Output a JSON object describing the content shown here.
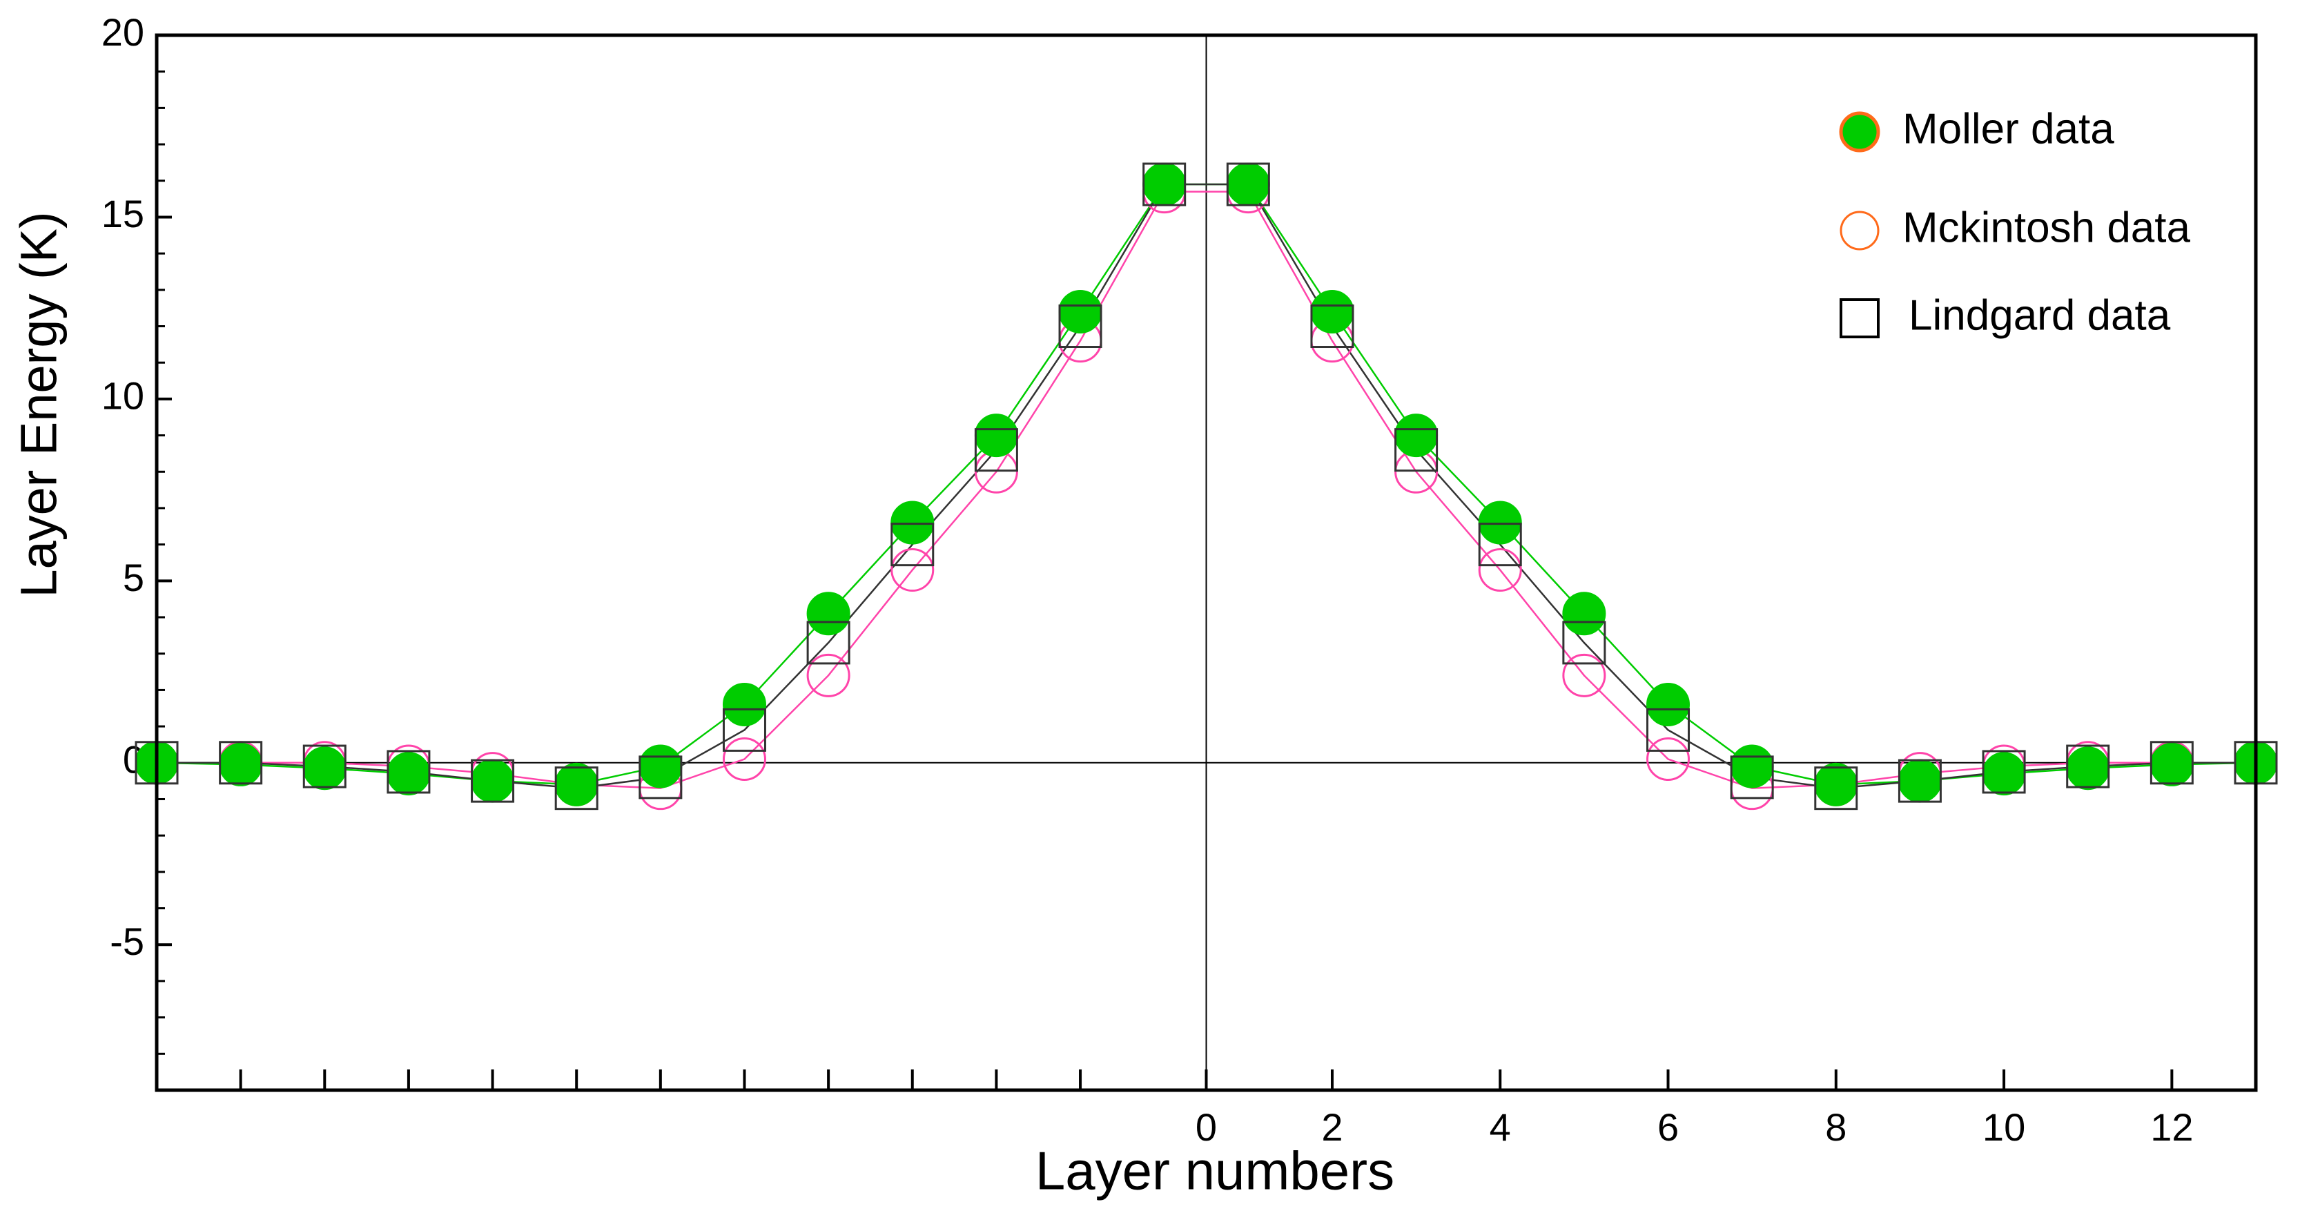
{
  "chart_data": {
    "type": "line",
    "xlabel": "Layer numbers",
    "ylabel": "Layer Energy (K)",
    "x": [
      -12.5,
      -11.5,
      -10.5,
      -9.5,
      -8.5,
      -7.5,
      -6.5,
      -5.5,
      -4.5,
      -3.5,
      -2.5,
      -1.5,
      -0.5,
      0.5,
      1.5,
      2.5,
      3.5,
      4.5,
      5.5,
      6.5,
      7.5,
      8.5,
      9.5,
      10.5,
      11.5,
      12.5
    ],
    "series": [
      {
        "name": "Mckintosh data",
        "color": "#ff44aa",
        "legend_color": "#ff6a1a",
        "marker": "circle",
        "values": [
          0,
          0,
          0,
          -0.1,
          -0.3,
          -0.6,
          -0.7,
          0.1,
          2.4,
          5.3,
          8.0,
          11.6,
          15.7,
          15.7,
          11.6,
          8.0,
          5.3,
          2.4,
          0.1,
          -0.7,
          -0.6,
          -0.3,
          -0.1,
          0,
          0,
          0
        ]
      },
      {
        "name": "Moller data",
        "color": "#00cc00",
        "legend_color": "#ff6a1a",
        "marker": "circle-filled",
        "values": [
          0,
          -0.05,
          -0.15,
          -0.3,
          -0.5,
          -0.6,
          -0.1,
          1.6,
          4.1,
          6.6,
          9.0,
          12.4,
          15.9,
          15.9,
          12.4,
          9.0,
          6.6,
          4.1,
          1.6,
          -0.1,
          -0.6,
          -0.5,
          -0.3,
          -0.15,
          -0.05,
          0
        ]
      },
      {
        "name": "Lindgard data",
        "color": "#333333",
        "legend_color": "#000000",
        "marker": "square",
        "values": [
          0,
          0,
          -0.1,
          -0.25,
          -0.5,
          -0.7,
          -0.4,
          0.9,
          3.3,
          6.0,
          8.6,
          12.0,
          15.9,
          15.9,
          12.0,
          8.6,
          6.0,
          3.3,
          0.9,
          -0.4,
          -0.7,
          -0.5,
          -0.25,
          -0.1,
          0,
          0
        ]
      }
    ],
    "legend_order": [
      1,
      0,
      2
    ],
    "xlim": [
      -12.5,
      12.5
    ],
    "ylim": [
      -9,
      20
    ],
    "xticks": [
      0,
      {
        "value": 1.5,
        "label": "2"
      },
      {
        "value": 3.5,
        "label": "4"
      },
      {
        "value": 5.5,
        "label": "6"
      },
      {
        "value": 7.5,
        "label": "8"
      },
      {
        "value": 9.5,
        "label": "10"
      },
      {
        "value": 11.5,
        "label": "12"
      }
    ],
    "xminorticks": [
      -11.5,
      -10.5,
      -9.5,
      -8.5,
      -7.5,
      -6.5,
      -5.5,
      -4.5,
      -3.5,
      -2.5,
      -1.5
    ],
    "yticks": [
      -5,
      0,
      5,
      10,
      15,
      20
    ],
    "yminorticks": [
      -8,
      -7,
      -6,
      -4,
      -3,
      -2,
      -1,
      1,
      2,
      3,
      4,
      6,
      7,
      8,
      9,
      11,
      12,
      13,
      14,
      16,
      17,
      18,
      19
    ]
  }
}
